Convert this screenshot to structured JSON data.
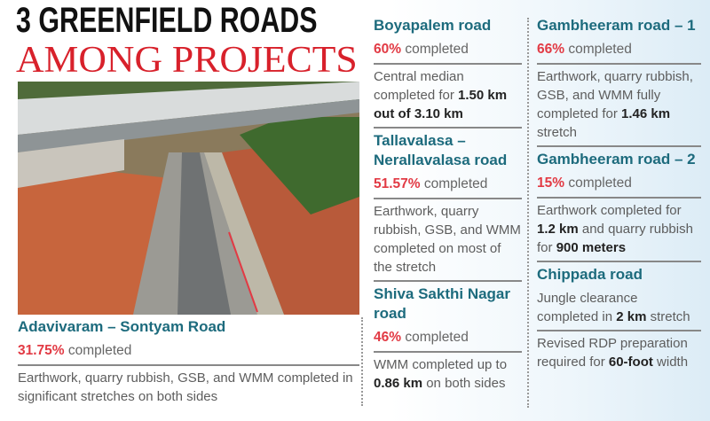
{
  "title": {
    "line1": "3 GREENFIELD ROADS",
    "line2": "AMONG PROJECTS"
  },
  "colors": {
    "heading": "#1d6b7d",
    "percent": "#e23a44",
    "title_red": "#d8212b"
  },
  "photo": {
    "description_icon": "aerial-road-photo"
  },
  "roads": [
    {
      "name": "Adavivaram – Sontyam Road",
      "percent": "31.75%",
      "status": "completed",
      "details": "Earthwork, quarry rubbish, GSB, and WMM completed in significant stretches on both sides"
    },
    {
      "name": "Boyapalem road",
      "percent": "60%",
      "status": "completed",
      "details_pre": "Central median completed for ",
      "details_bold": "1.50 km out of 3.10 km"
    },
    {
      "name": "Tallavalasa – Nerallavalasa road",
      "percent": "51.57%",
      "status": "completed",
      "details": "Earthwork, quarry rubbish, GSB, and WMM completed on most of the stretch"
    },
    {
      "name": "Shiva Sakthi Nagar road",
      "percent": "46%",
      "status": "completed",
      "details_pre": "WMM completed up to ",
      "details_bold": "0.86 km",
      "details_post": " on both sides"
    },
    {
      "name": "Gambheeram road – 1",
      "percent": "66%",
      "status": "completed",
      "details_pre": "Earthwork, quarry rubbish, GSB, and WMM fully completed for ",
      "details_bold": "1.46 km",
      "details_post": " stretch"
    },
    {
      "name": "Gambheeram road – 2",
      "percent": "15%",
      "status": "completed",
      "details_pre": "Earthwork completed for ",
      "details_bold": "1.2 km",
      "details_mid": " and quarry rubbish for ",
      "details_bold2": "900 meters"
    },
    {
      "name": "Chippada road",
      "status": "",
      "details_pre": "Jungle clearance completed in ",
      "details_bold": "2 km",
      "details_post": " stretch",
      "details2_pre": "Revised RDP preparation required for ",
      "details2_bold": "60-foot",
      "details2_post": " width"
    }
  ]
}
